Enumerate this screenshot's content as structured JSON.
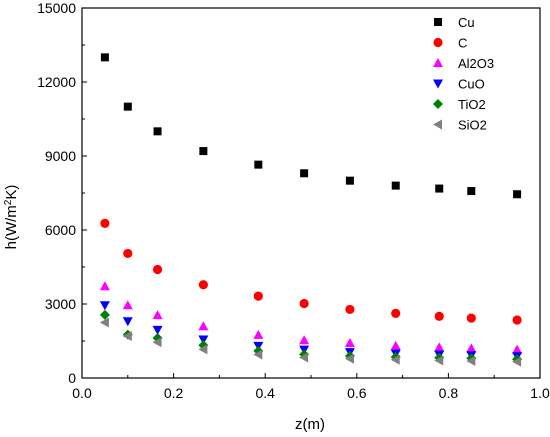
{
  "chart_data": {
    "type": "scatter",
    "xlabel": "z(m)",
    "ylabel": "h(W/m²K)",
    "xlim": [
      0.0,
      1.0
    ],
    "ylim": [
      0,
      15000
    ],
    "xticks": [
      "0.0",
      "0.2",
      "0.4",
      "0.6",
      "0.8",
      "1.0"
    ],
    "yticks": [
      "0",
      "3000",
      "6000",
      "9000",
      "12000",
      "15000"
    ],
    "grid": false,
    "legend_position": "top-right",
    "x": [
      0.05,
      0.1,
      0.165,
      0.265,
      0.385,
      0.485,
      0.585,
      0.685,
      0.78,
      0.85,
      0.95
    ],
    "series": [
      {
        "name": "Cu",
        "marker": "square",
        "color": "#000000",
        "values": [
          13000,
          11000,
          10000,
          9200,
          8650,
          8300,
          8000,
          7800,
          7680,
          7580,
          7450
        ]
      },
      {
        "name": "C",
        "marker": "circle",
        "color": "#ff0000",
        "values": [
          6270,
          5050,
          4400,
          3780,
          3320,
          3020,
          2780,
          2620,
          2500,
          2430,
          2350
        ]
      },
      {
        "name": "Al2O3",
        "marker": "triangle-up",
        "color": "#ff00ff",
        "values": [
          3720,
          2950,
          2550,
          2100,
          1750,
          1530,
          1420,
          1300,
          1240,
          1200,
          1150
        ]
      },
      {
        "name": "CuO",
        "marker": "triangle-down",
        "color": "#0000ff",
        "values": [
          2950,
          2300,
          1950,
          1560,
          1300,
          1150,
          1050,
          990,
          950,
          920,
          880
        ]
      },
      {
        "name": "TiO2",
        "marker": "diamond",
        "color": "#008000",
        "values": [
          2560,
          1760,
          1620,
          1330,
          1100,
          960,
          890,
          850,
          820,
          800,
          760
        ]
      },
      {
        "name": "SiO2",
        "marker": "triangle-left",
        "color": "#808080",
        "values": [
          2250,
          1700,
          1450,
          1160,
          950,
          830,
          780,
          740,
          710,
          690,
          660
        ]
      }
    ]
  }
}
